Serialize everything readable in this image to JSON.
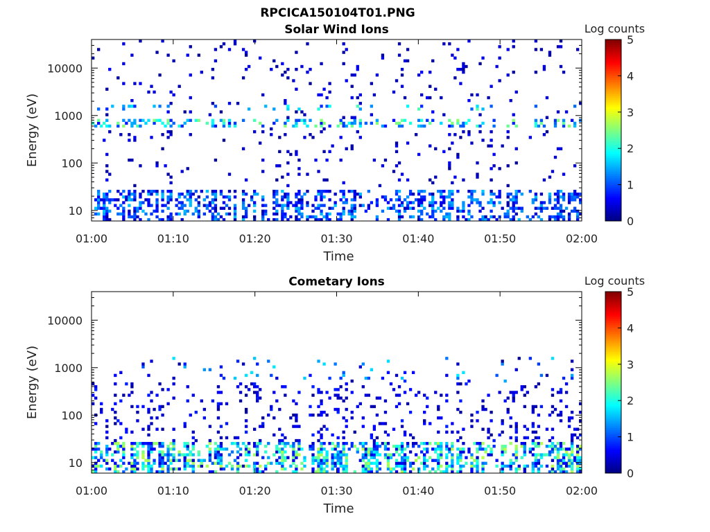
{
  "figure": {
    "title": "RPCICA150104T01.PNG"
  },
  "chart_data": [
    {
      "type": "heatmap",
      "title": "Solar Wind Ions",
      "xlabel": "Time",
      "ylabel": "Energy (eV)",
      "x_ticks": [
        "01:00",
        "01:10",
        "01:20",
        "01:30",
        "01:40",
        "01:50",
        "02:00"
      ],
      "xlim": [
        "01:00",
        "02:00"
      ],
      "y_scale": "log",
      "y_ticks": [
        10,
        100,
        1000,
        10000
      ],
      "y_tick_labels": [
        "10",
        "100",
        "1000",
        "10000"
      ],
      "ylim": [
        6,
        40000
      ],
      "colorbar": {
        "label": "Log counts",
        "ticks": [
          "0",
          "1",
          "2",
          "3",
          "4",
          "5"
        ],
        "range": [
          0,
          5
        ],
        "colormap": "jet"
      },
      "bands": [
        {
          "energy": [
            6,
            28
          ],
          "density": 0.35,
          "level_range": [
            0.2,
            1.6
          ]
        },
        {
          "energy": [
            550,
            900
          ],
          "density": 0.28,
          "level_range": [
            0.6,
            2.6
          ]
        },
        {
          "energy": [
            1300,
            1700
          ],
          "density": 0.1,
          "level_range": [
            0.8,
            2.3
          ]
        },
        {
          "energy": [
            30,
            40000
          ],
          "density": 0.035,
          "level_range": [
            0.1,
            0.6
          ]
        }
      ]
    },
    {
      "type": "heatmap",
      "title": "Cometary Ions",
      "xlabel": "Time",
      "ylabel": "Energy (eV)",
      "x_ticks": [
        "01:00",
        "01:10",
        "01:20",
        "01:30",
        "01:40",
        "01:50",
        "02:00"
      ],
      "xlim": [
        "01:00",
        "02:00"
      ],
      "y_scale": "log",
      "y_ticks": [
        10,
        100,
        1000,
        10000
      ],
      "y_tick_labels": [
        "10",
        "100",
        "1000",
        "10000"
      ],
      "ylim": [
        6,
        40000
      ],
      "colorbar": {
        "label": "Log counts",
        "ticks": [
          "0",
          "1",
          "2",
          "3",
          "4",
          "5"
        ],
        "range": [
          0,
          5
        ],
        "colormap": "jet"
      },
      "bands": [
        {
          "energy": [
            6,
            28
          ],
          "density": 0.45,
          "level_range": [
            0.3,
            2.8
          ]
        },
        {
          "energy": [
            28,
            500
          ],
          "density": 0.1,
          "level_range": [
            0.1,
            0.8
          ]
        },
        {
          "energy": [
            500,
            1800
          ],
          "density": 0.04,
          "level_range": [
            0.1,
            1.8
          ]
        }
      ]
    }
  ]
}
